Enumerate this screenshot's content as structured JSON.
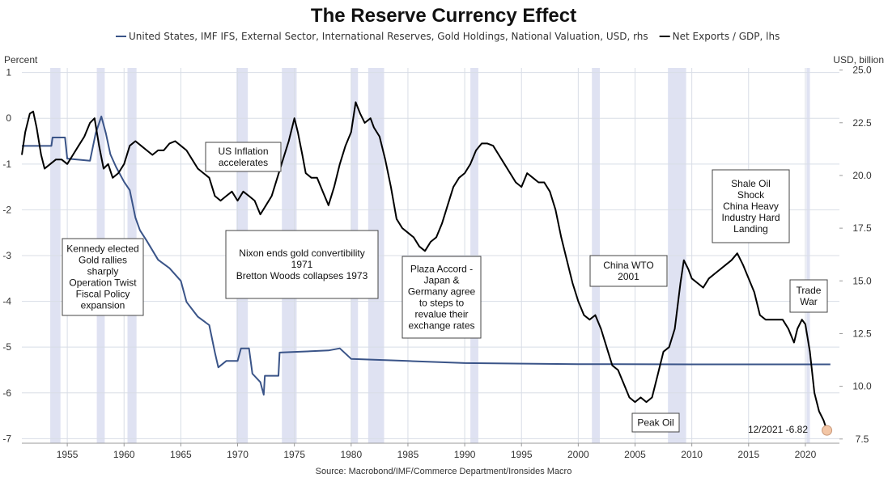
{
  "chart_data": {
    "type": "line",
    "title": "The Reserve Currency Effect",
    "legend": {
      "placement": "top",
      "entries": [
        "United States, IMF IFS, External Sector, International Reserves, Gold Holdings, National Valuation, USD, rhs",
        "Net Exports / GDP, lhs"
      ]
    },
    "ylabel_left": "Percent",
    "ylabel_right": "USD, billion",
    "xlim": [
      1951,
      2023
    ],
    "ylim_left": [
      -7.1,
      1.1
    ],
    "ylim_right": [
      7.3,
      25.1
    ],
    "x_ticks": [
      "1955",
      "1960",
      "1965",
      "1970",
      "1975",
      "1980",
      "1985",
      "1990",
      "1995",
      "2000",
      "2005",
      "2010",
      "2015",
      "2020"
    ],
    "y_ticks_left": [
      "1",
      "0",
      "-1",
      "-2",
      "-3",
      "-4",
      "-5",
      "-6",
      "-7"
    ],
    "y_ticks_right": [
      "25.0",
      "22.5",
      "20.0",
      "17.5",
      "15.0",
      "12.5",
      "10.0",
      "7.5"
    ],
    "grid": true,
    "recessions": [
      [
        1953.5,
        1954.4
      ],
      [
        1957.6,
        1958.3
      ],
      [
        1960.3,
        1961.1
      ],
      [
        1969.9,
        1970.9
      ],
      [
        1973.9,
        1975.2
      ],
      [
        1980.0,
        1980.6
      ],
      [
        1981.5,
        1982.9
      ],
      [
        1990.5,
        1991.2
      ],
      [
        2001.2,
        2001.9
      ],
      [
        2007.9,
        2009.5
      ],
      [
        2020.1,
        2020.4
      ]
    ],
    "series": [
      {
        "name": "United States, IMF IFS, External Sector, International Reserves, Gold Holdings, National Valuation, USD, rhs",
        "axis": "right",
        "color": "#3a5488",
        "points": [
          [
            1951,
            21.4
          ],
          [
            1953.6,
            21.4
          ],
          [
            1953.7,
            21.8
          ],
          [
            1954.8,
            21.8
          ],
          [
            1955.0,
            20.8
          ],
          [
            1957.0,
            20.7
          ],
          [
            1957.5,
            22.0
          ],
          [
            1958.0,
            22.8
          ],
          [
            1958.4,
            22.0
          ],
          [
            1958.8,
            21.0
          ],
          [
            1959.3,
            20.4
          ],
          [
            1960.0,
            19.7
          ],
          [
            1960.5,
            19.3
          ],
          [
            1961.0,
            18.0
          ],
          [
            1961.4,
            17.4
          ],
          [
            1962.0,
            16.9
          ],
          [
            1963.0,
            16.0
          ],
          [
            1964.0,
            15.6
          ],
          [
            1965.0,
            15.0
          ],
          [
            1965.5,
            14.0
          ],
          [
            1966.5,
            13.3
          ],
          [
            1967.5,
            12.9
          ],
          [
            1968.0,
            11.6
          ],
          [
            1968.3,
            10.9
          ],
          [
            1969.0,
            11.2
          ],
          [
            1970.0,
            11.2
          ],
          [
            1970.3,
            11.8
          ],
          [
            1971.0,
            11.8
          ],
          [
            1971.3,
            10.6
          ],
          [
            1972.0,
            10.2
          ],
          [
            1972.3,
            9.6
          ],
          [
            1972.4,
            10.5
          ],
          [
            1973.6,
            10.5
          ],
          [
            1973.7,
            11.6
          ],
          [
            1978.0,
            11.7
          ],
          [
            1979.0,
            11.8
          ],
          [
            1980.0,
            11.3
          ],
          [
            1985.0,
            11.2
          ],
          [
            1990.0,
            11.1
          ],
          [
            2000.0,
            11.05
          ],
          [
            2010.0,
            11.04
          ],
          [
            2022.2,
            11.04
          ]
        ]
      },
      {
        "name": "Net Exports / GDP, lhs",
        "axis": "left",
        "color": "#000000",
        "points": [
          [
            1951.0,
            -0.8
          ],
          [
            1951.3,
            -0.3
          ],
          [
            1951.7,
            0.1
          ],
          [
            1952.0,
            0.15
          ],
          [
            1952.3,
            -0.2
          ],
          [
            1952.7,
            -0.8
          ],
          [
            1953.0,
            -1.1
          ],
          [
            1953.5,
            -1.0
          ],
          [
            1954.0,
            -0.9
          ],
          [
            1954.5,
            -0.9
          ],
          [
            1955.0,
            -1.0
          ],
          [
            1955.5,
            -0.8
          ],
          [
            1956.0,
            -0.6
          ],
          [
            1956.5,
            -0.4
          ],
          [
            1957.0,
            -0.1
          ],
          [
            1957.4,
            0.0
          ],
          [
            1957.8,
            -0.6
          ],
          [
            1958.2,
            -1.1
          ],
          [
            1958.6,
            -1.0
          ],
          [
            1959.0,
            -1.3
          ],
          [
            1959.5,
            -1.2
          ],
          [
            1960.0,
            -1.0
          ],
          [
            1960.5,
            -0.6
          ],
          [
            1961.0,
            -0.5
          ],
          [
            1961.5,
            -0.6
          ],
          [
            1962.0,
            -0.7
          ],
          [
            1962.5,
            -0.8
          ],
          [
            1963.0,
            -0.7
          ],
          [
            1963.5,
            -0.7
          ],
          [
            1964.0,
            -0.55
          ],
          [
            1964.5,
            -0.5
          ],
          [
            1965.0,
            -0.6
          ],
          [
            1965.5,
            -0.7
          ],
          [
            1966.0,
            -0.9
          ],
          [
            1966.5,
            -1.1
          ],
          [
            1967.0,
            -1.2
          ],
          [
            1967.5,
            -1.3
          ],
          [
            1968.0,
            -1.7
          ],
          [
            1968.5,
            -1.8
          ],
          [
            1969.0,
            -1.7
          ],
          [
            1969.5,
            -1.6
          ],
          [
            1970.0,
            -1.8
          ],
          [
            1970.5,
            -1.6
          ],
          [
            1971.0,
            -1.7
          ],
          [
            1971.5,
            -1.8
          ],
          [
            1972.0,
            -2.1
          ],
          [
            1972.5,
            -1.9
          ],
          [
            1973.0,
            -1.7
          ],
          [
            1973.5,
            -1.3
          ],
          [
            1974.0,
            -0.9
          ],
          [
            1974.5,
            -0.5
          ],
          [
            1975.0,
            0.0
          ],
          [
            1975.3,
            -0.3
          ],
          [
            1975.7,
            -0.8
          ],
          [
            1976.0,
            -1.2
          ],
          [
            1976.5,
            -1.3
          ],
          [
            1977.0,
            -1.3
          ],
          [
            1977.5,
            -1.6
          ],
          [
            1978.0,
            -1.9
          ],
          [
            1978.5,
            -1.5
          ],
          [
            1979.0,
            -1.0
          ],
          [
            1979.5,
            -0.6
          ],
          [
            1980.0,
            -0.3
          ],
          [
            1980.4,
            0.35
          ],
          [
            1980.8,
            0.1
          ],
          [
            1981.2,
            -0.1
          ],
          [
            1981.7,
            0.0
          ],
          [
            1982.0,
            -0.2
          ],
          [
            1982.5,
            -0.4
          ],
          [
            1983.0,
            -0.9
          ],
          [
            1983.5,
            -1.5
          ],
          [
            1984.0,
            -2.2
          ],
          [
            1984.5,
            -2.4
          ],
          [
            1985.0,
            -2.5
          ],
          [
            1985.5,
            -2.6
          ],
          [
            1986.0,
            -2.8
          ],
          [
            1986.5,
            -2.9
          ],
          [
            1987.0,
            -2.7
          ],
          [
            1987.5,
            -2.6
          ],
          [
            1988.0,
            -2.3
          ],
          [
            1988.5,
            -1.9
          ],
          [
            1989.0,
            -1.5
          ],
          [
            1989.5,
            -1.3
          ],
          [
            1990.0,
            -1.2
          ],
          [
            1990.5,
            -1.0
          ],
          [
            1991.0,
            -0.7
          ],
          [
            1991.5,
            -0.55
          ],
          [
            1992.0,
            -0.55
          ],
          [
            1992.5,
            -0.6
          ],
          [
            1993.0,
            -0.8
          ],
          [
            1993.5,
            -1.0
          ],
          [
            1994.0,
            -1.2
          ],
          [
            1994.5,
            -1.4
          ],
          [
            1995.0,
            -1.5
          ],
          [
            1995.5,
            -1.2
          ],
          [
            1996.0,
            -1.3
          ],
          [
            1996.5,
            -1.4
          ],
          [
            1997.0,
            -1.4
          ],
          [
            1997.5,
            -1.6
          ],
          [
            1998.0,
            -2.0
          ],
          [
            1998.5,
            -2.6
          ],
          [
            1999.0,
            -3.1
          ],
          [
            1999.5,
            -3.6
          ],
          [
            2000.0,
            -4.0
          ],
          [
            2000.5,
            -4.3
          ],
          [
            2001.0,
            -4.4
          ],
          [
            2001.5,
            -4.3
          ],
          [
            2002.0,
            -4.6
          ],
          [
            2002.5,
            -5.0
          ],
          [
            2003.0,
            -5.4
          ],
          [
            2003.5,
            -5.5
          ],
          [
            2004.0,
            -5.8
          ],
          [
            2004.5,
            -6.1
          ],
          [
            2005.0,
            -6.2
          ],
          [
            2005.5,
            -6.1
          ],
          [
            2006.0,
            -6.2
          ],
          [
            2006.5,
            -6.1
          ],
          [
            2007.0,
            -5.6
          ],
          [
            2007.5,
            -5.1
          ],
          [
            2008.0,
            -5.0
          ],
          [
            2008.5,
            -4.6
          ],
          [
            2009.0,
            -3.6
          ],
          [
            2009.3,
            -3.1
          ],
          [
            2009.7,
            -3.3
          ],
          [
            2010.0,
            -3.5
          ],
          [
            2010.5,
            -3.6
          ],
          [
            2011.0,
            -3.7
          ],
          [
            2011.5,
            -3.5
          ],
          [
            2012.0,
            -3.4
          ],
          [
            2012.5,
            -3.3
          ],
          [
            2013.0,
            -3.2
          ],
          [
            2013.5,
            -3.1
          ],
          [
            2014.0,
            -2.95
          ],
          [
            2014.5,
            -3.2
          ],
          [
            2015.0,
            -3.5
          ],
          [
            2015.5,
            -3.8
          ],
          [
            2016.0,
            -4.3
          ],
          [
            2016.5,
            -4.4
          ],
          [
            2017.0,
            -4.4
          ],
          [
            2017.5,
            -4.4
          ],
          [
            2018.0,
            -4.4
          ],
          [
            2018.5,
            -4.6
          ],
          [
            2019.0,
            -4.9
          ],
          [
            2019.3,
            -4.6
          ],
          [
            2019.7,
            -4.4
          ],
          [
            2020.0,
            -4.5
          ],
          [
            2020.4,
            -5.1
          ],
          [
            2020.8,
            -6.0
          ],
          [
            2021.2,
            -6.4
          ],
          [
            2021.6,
            -6.6
          ],
          [
            2021.9,
            -6.82
          ]
        ]
      }
    ],
    "annotations": [
      {
        "lines": [
          "Kennedy elected",
          "Gold rallies",
          "sharply",
          "Operation Twist",
          "Fiscal Policy",
          "expansion"
        ]
      },
      {
        "lines": [
          "US Inflation",
          "accelerates"
        ]
      },
      {
        "lines": [
          "Nixon ends gold convertibility",
          "1971",
          "Bretton Woods collapses 1973"
        ]
      },
      {
        "lines": [
          "Plaza Accord -",
          "Japan &",
          "Germany agree",
          "to steps to",
          "revalue their",
          "exchange rates"
        ]
      },
      {
        "lines": [
          "China WTO",
          "2001"
        ]
      },
      {
        "lines": [
          "Shale Oil",
          "Shock",
          "China Heavy",
          "Industry Hard",
          "Landing"
        ]
      },
      {
        "lines": [
          "Trade",
          "War"
        ]
      },
      {
        "lines": [
          "Peak Oil"
        ]
      }
    ],
    "end_label": "12/2021 -6.82",
    "end_point": [
      2021.9,
      -6.82
    ],
    "source": "Source: Macrobond/IMF/Commerce Department/Ironsides Macro"
  },
  "colors": {
    "gold_series": "#3a5488",
    "net_exports_series": "#000000",
    "recession_band": "#dfe2f2",
    "grid": "#d8dde6",
    "end_marker": "#f3c6a6"
  }
}
